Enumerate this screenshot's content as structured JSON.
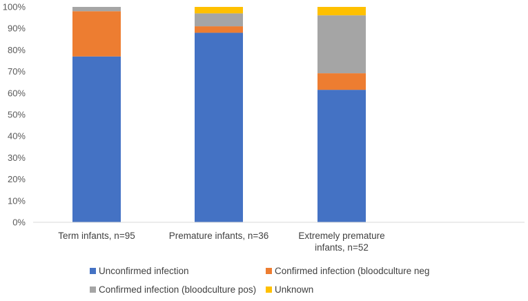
{
  "chart_data": {
    "type": "bar",
    "stacked": true,
    "normalized": true,
    "categories": [
      [
        "Term infants, n=95"
      ],
      [
        "Premature infants, n=36"
      ],
      [
        "Extremely premature",
        "infants, n=52"
      ]
    ],
    "series": [
      {
        "name": "Unconfirmed infection",
        "color": "#4472C4",
        "values": [
          77,
          88,
          61.5
        ]
      },
      {
        "name": "Confirmed infection (bloodculture neg",
        "color": "#ED7D31",
        "values": [
          21,
          3,
          7.7
        ]
      },
      {
        "name": "Confirmed infection (bloodculture pos)",
        "color": "#A5A5A5",
        "values": [
          2,
          6,
          26.9
        ]
      },
      {
        "name": "Unknown",
        "color": "#FFC000",
        "values": [
          0,
          3,
          3.9
        ]
      }
    ],
    "ylim": [
      0,
      100
    ],
    "yticks": [
      "0%",
      "10%",
      "20%",
      "30%",
      "40%",
      "50%",
      "60%",
      "70%",
      "80%",
      "90%",
      "100%"
    ],
    "legend_position": "bottom",
    "grid": false
  }
}
